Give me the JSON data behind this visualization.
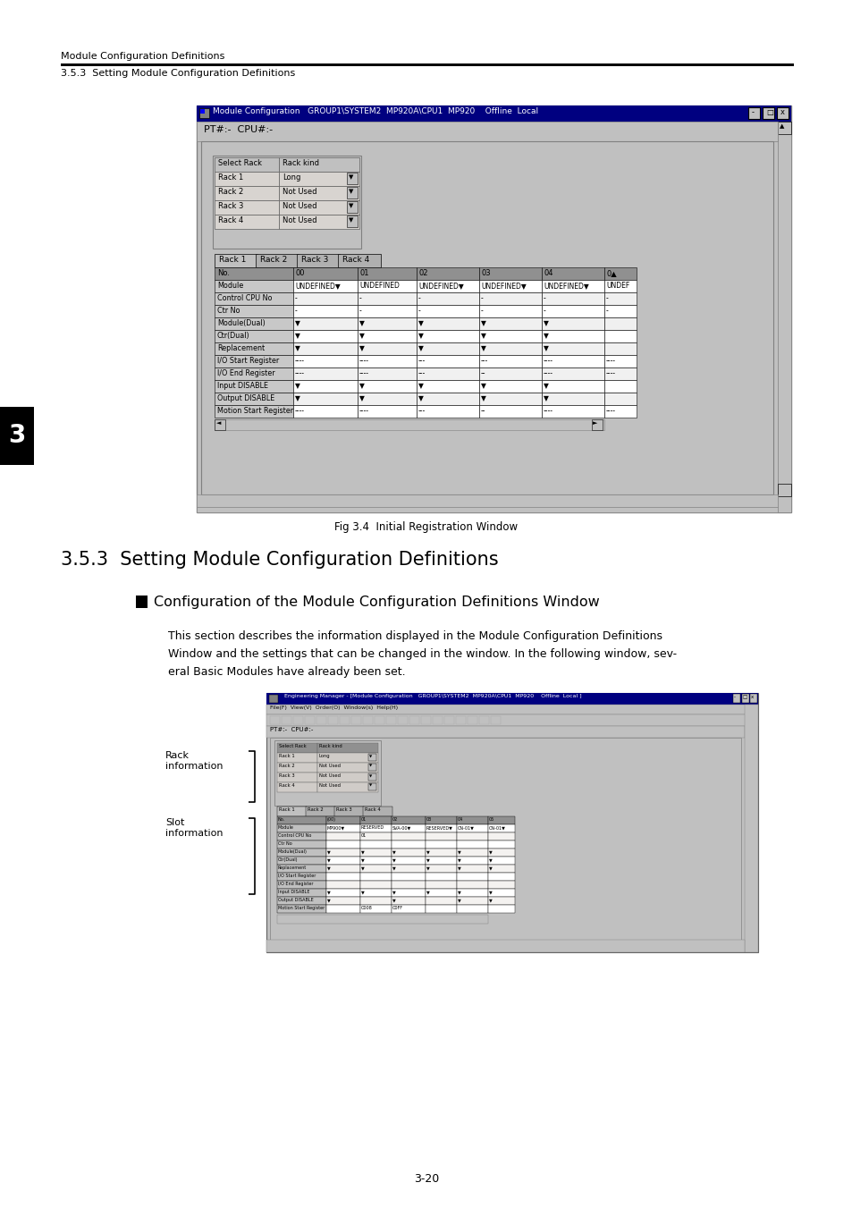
{
  "page_bg": "#ffffff",
  "header_text1": "Module Configuration Definitions",
  "header_text2": "3.5.3  Setting Module Configuration Definitions",
  "section_title": "3.5.3  Setting Module Configuration Definitions",
  "subsection_title": "Configuration of the Module Configuration Definitions Window",
  "body_text_lines": [
    "This section describes the information displayed in the Module Configuration Definitions",
    "Window and the settings that can be changed in the window. In the following window, sev-",
    "eral Basic Modules have already been set."
  ],
  "fig_caption": "Fig 3.4  Initial Registration Window",
  "left_label1": "Rack\ninformation",
  "left_label2": "Slot\ninformation",
  "page_number": "3-20",
  "side_tab_text": "3",
  "win1_title": "Module Configuration   GROUP1\\SYSTEM2  MP920A\\CPU1  MP920    Offline  Local",
  "win2_menu": "File(F)  View(V)  Order(O)  Window(s)  Help(H)",
  "rack_rows": [
    [
      "Select Rack",
      "Rack kind"
    ],
    [
      "Rack 1",
      "Long"
    ],
    [
      "Rack 2",
      "Not Used"
    ],
    [
      "Rack 3",
      "Not Used"
    ],
    [
      "Rack 4",
      "Not Used"
    ]
  ],
  "slot_rows": [
    "Module",
    "Control CPU No",
    "Ctr No",
    "Module(Dual)",
    "Ctr(Dual)",
    "Replacement",
    "I/O Start Register",
    "I/O End Register",
    "Input DISABLE",
    "Output DISABLE",
    "Motion Start Register"
  ],
  "colors": {
    "title_bar_blue": "#000080",
    "win_bg": "#c0c0c0",
    "cell_white": "#ffffff",
    "cell_light": "#e8e8e8",
    "row_label_bg": "#c8c8c8",
    "header_row_bg": "#909090",
    "tab_active_bg": "#c0c0c0",
    "tab_inactive_bg": "#a8a8a8"
  }
}
